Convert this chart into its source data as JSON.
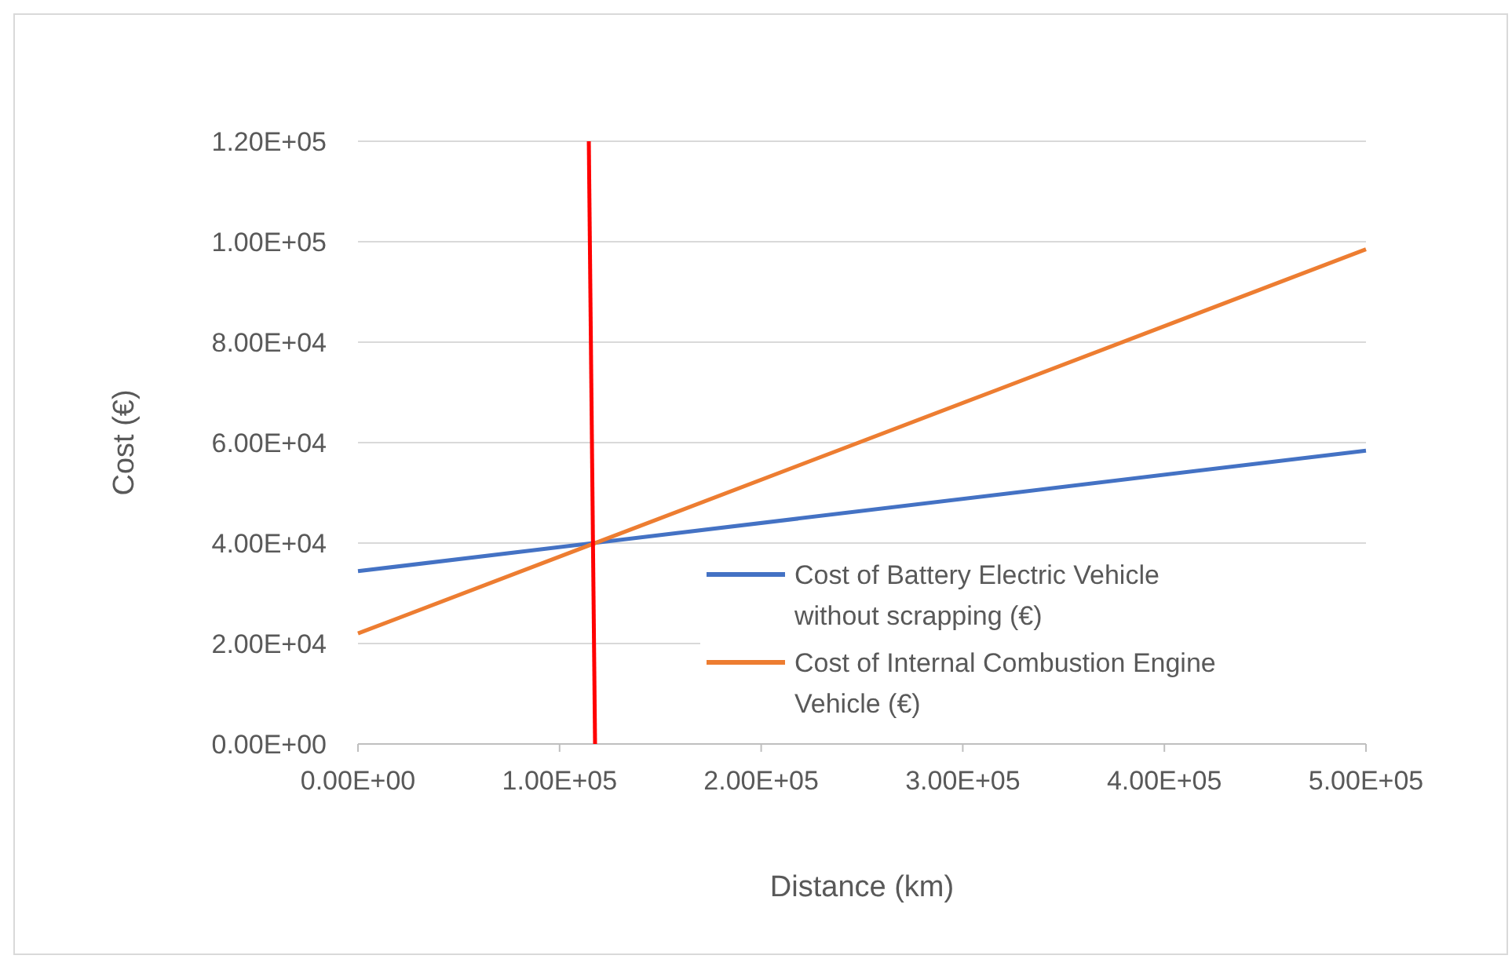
{
  "chart_data": {
    "type": "line",
    "xlabel": "Distance (km)",
    "ylabel": "Cost (€)",
    "xlim": [
      0,
      500000
    ],
    "ylim": [
      0,
      120000
    ],
    "xticks": [
      {
        "value": 0,
        "label": "0.00E+00"
      },
      {
        "value": 100000,
        "label": "1.00E+05"
      },
      {
        "value": 200000,
        "label": "2.00E+05"
      },
      {
        "value": 300000,
        "label": "3.00E+05"
      },
      {
        "value": 400000,
        "label": "4.00E+05"
      },
      {
        "value": 500000,
        "label": "5.00E+05"
      }
    ],
    "yticks": [
      {
        "value": 0,
        "label": "0.00E+00"
      },
      {
        "value": 20000,
        "label": "2.00E+04"
      },
      {
        "value": 40000,
        "label": "4.00E+04"
      },
      {
        "value": 60000,
        "label": "6.00E+04"
      },
      {
        "value": 80000,
        "label": "8.00E+04"
      },
      {
        "value": 100000,
        "label": "1.00E+05"
      },
      {
        "value": 120000,
        "label": "1.20E+05"
      }
    ],
    "grid": "y",
    "legend": "bottom right",
    "marker": "none",
    "line_style": "solid",
    "series": [
      {
        "name": "Cost of Battery Electric Vehicle without scrapping (€)",
        "color": "#4472c4",
        "x": [
          0,
          500000
        ],
        "values": [
          34400,
          58400
        ]
      },
      {
        "name": "Cost of Internal Combustion Engine Vehicle (€)",
        "color": "#ed7d31",
        "x": [
          0,
          500000
        ],
        "values": [
          22000,
          98500
        ]
      },
      {
        "color": "#ff0000",
        "x": [
          114500,
          117600
        ],
        "values": [
          120000,
          0
        ]
      }
    ]
  }
}
